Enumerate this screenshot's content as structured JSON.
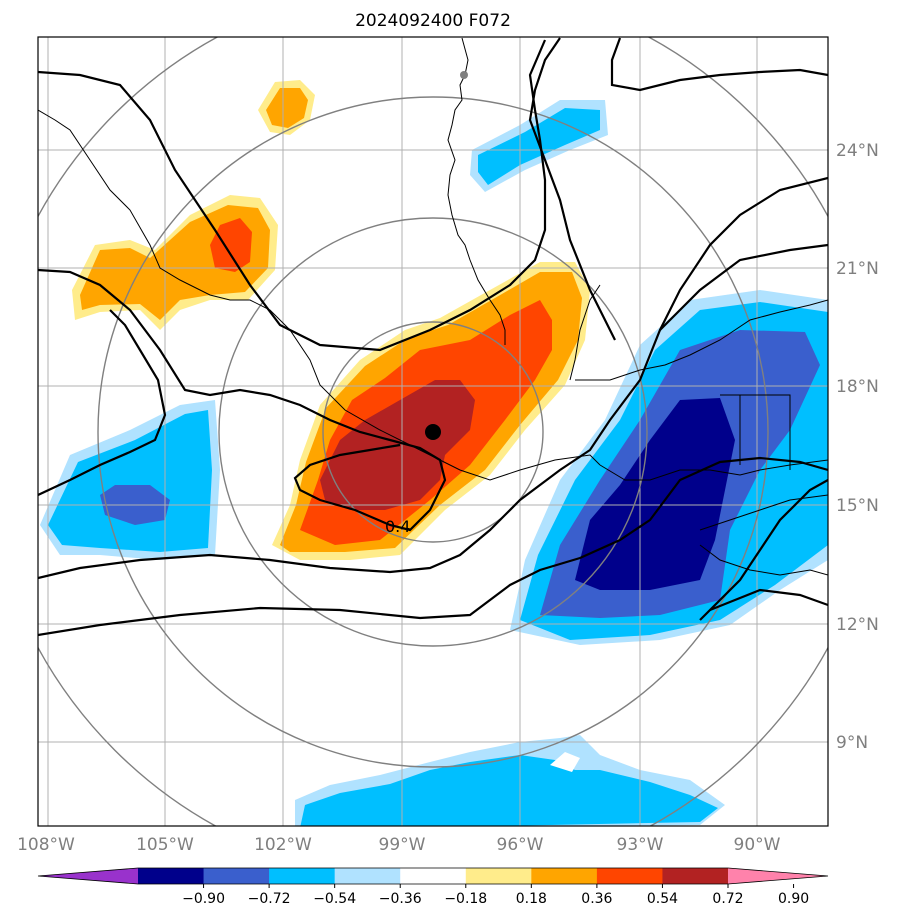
{
  "title": "2024092400 F072",
  "map": {
    "projection": "polar-stereographic style regional map",
    "lon_ticks": [
      "108°W",
      "105°W",
      "102°W",
      "99°W",
      "96°W",
      "93°W",
      "90°W"
    ],
    "lat_ticks": [
      "24°N",
      "21°N",
      "18°N",
      "15°N",
      "12°N",
      "9°N"
    ],
    "storm_center": {
      "lon": -98.0,
      "lat": 16.8
    },
    "contour_label": "0.4",
    "field_colors": {
      "strong_negative": "#00008b",
      "moderate_negative": "#3a5fcd",
      "weak_negative": "#00bfff",
      "very_weak_negative": "#b0e2ff",
      "very_weak_positive": "#ffec8b",
      "weak_positive": "#ffa500",
      "moderate_positive": "#ff4500",
      "strong_positive": "#b22222"
    },
    "range_rings": "gray concentric rings around storm center",
    "gridlines": true
  },
  "colorbar": {
    "labels": [
      "−0.90",
      "−0.72",
      "−0.54",
      "−0.36",
      "−0.18",
      "0.18",
      "0.36",
      "0.54",
      "0.72",
      "0.90"
    ],
    "colors": [
      "#9932cc",
      "#00008b",
      "#3a5fcd",
      "#00bfff",
      "#b0e2ff",
      "#ffffff",
      "#ffec8b",
      "#ffa500",
      "#ff4500",
      "#b22222",
      "#ff82ab"
    ],
    "extend": "both"
  }
}
